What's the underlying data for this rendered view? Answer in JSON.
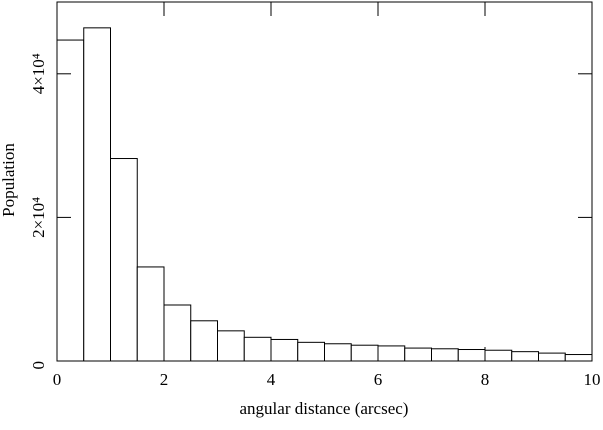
{
  "chart_data": {
    "type": "histogram",
    "xlabel": "angular distance (arcsec)",
    "ylabel": "Population",
    "bins": [
      0,
      0.5,
      1,
      1.5,
      2,
      2.5,
      3,
      3.5,
      4,
      4.5,
      5,
      5.5,
      6,
      6.5,
      7,
      7.5,
      8,
      8.5,
      9,
      9.5,
      10
    ],
    "counts": [
      44700,
      46400,
      28200,
      13100,
      7800,
      5600,
      4200,
      3300,
      3000,
      2600,
      2400,
      2200,
      2100,
      1800,
      1700,
      1600,
      1500,
      1300,
      1100,
      900
    ],
    "color": "#ffffff",
    "xlim": [
      0,
      10
    ],
    "xticks": [
      0,
      2,
      4,
      6,
      8,
      10
    ],
    "ylim": [
      0,
      50000
    ],
    "yticks": [
      0,
      {
        "value": 20000,
        "label": "2×10⁴"
      },
      {
        "value": 40000,
        "label": "4×10⁴"
      }
    ]
  }
}
